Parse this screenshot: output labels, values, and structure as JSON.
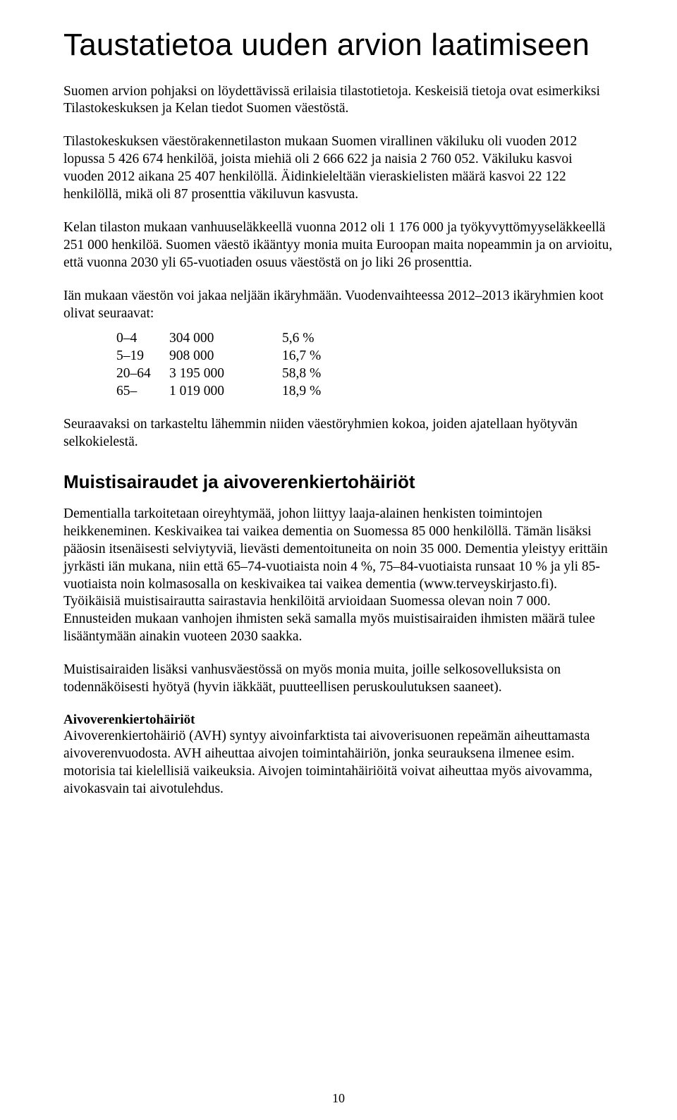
{
  "title": "Taustatietoa uuden arvion laatimiseen",
  "para1": "Suomen arvion pohjaksi on löydettävissä erilaisia tilastotietoja. Keskeisiä tietoja ovat esimerkiksi Tilastokeskuksen ja Kelan tiedot Suomen väestöstä.",
  "para2": "Tilastokeskuksen väestörakennetilaston mukaan Suomen virallinen väkiluku oli vuoden 2012 lopussa 5 426 674 henkilöä, joista miehiä oli 2 666 622 ja naisia 2 760 052. Väkiluku kasvoi vuoden 2012 aikana 25 407 henkilöllä. Äidinkieleltään vieraskielisten määrä kasvoi 22 122 henkilöllä, mikä oli 87 prosenttia väkiluvun kasvusta.",
  "para3": "Kelan tilaston mukaan vanhuuseläkkeellä vuonna 2012 oli 1 176 000 ja työkyvyttömyyseläkkeellä 251 000 henkilöä. Suomen väestö ikääntyy monia muita Euroopan maita nopeammin ja on arvioitu, että vuonna 2030 yli 65-vuotiaden osuus väestöstä on jo liki 26 prosenttia.",
  "para4_intro": "Iän mukaan väestön voi jakaa neljään ikäryhmään. Vuodenvaihteessa 2012–2013 ikäryhmien koot olivat seuraavat:",
  "age_groups": [
    {
      "range": "0–4",
      "count": "304 000",
      "pct": "5,6 %"
    },
    {
      "range": "5–19",
      "count": "908 000",
      "pct": "16,7 %"
    },
    {
      "range": "20–64",
      "count": "3 195 000",
      "pct": "58,8 %"
    },
    {
      "range": "65–",
      "count": "1 019 000",
      "pct": "18,9 %"
    }
  ],
  "para5": "Seuraavaksi on tarkasteltu lähemmin niiden väestöryhmien kokoa, joiden ajatellaan hyötyvän selkokielestä.",
  "section1_heading": "Muistisairaudet ja aivoverenkiertohäiriöt",
  "section1_para1": "Dementialla tarkoitetaan oireyhtymää, johon liittyy laaja-alainen henkisten toimintojen heikkeneminen. Keskivaikea tai vaikea dementia on Suomessa 85 000 henkilöllä. Tämän lisäksi pääosin itsenäisesti selviytyviä, lievästi dementoituneita on noin 35 000. Dementia yleistyy erittäin jyrkästi iän mukana, niin että 65–74-vuotiaista noin 4 %, 75–84-vuotiaista runsaat 10 % ja yli 85-vuotiaista noin kolmasosalla on keskivaikea tai vaikea dementia (www.terveyskirjasto.fi). Työikäisiä muistisairautta sairastavia henkilöitä arvioidaan Suomessa olevan noin 7 000. Ennusteiden mukaan vanhojen ihmisten sekä samalla myös muistisairaiden ihmisten määrä tulee lisääntymään ainakin vuoteen 2030 saakka.",
  "section1_para2": "Muistisairaiden lisäksi vanhusväestössä on myös monia muita, joille selkosovelluksista on todennäköisesti hyötyä (hyvin iäkkäät, puutteellisen peruskoulutuksen saaneet).",
  "sub1_heading": "Aivoverenkiertohäiriöt",
  "sub1_para": "Aivoverenkiertohäiriö (AVH) syntyy aivoinfarktista tai aivoverisuonen repeämän aiheuttamasta aivoverenvuodosta. AVH aiheuttaa aivojen toimintahäiriön, jonka seurauksena ilmenee esim. motorisia tai kielellisiä vaikeuksia. Aivojen toimintahäiriöitä voivat aiheuttaa myös aivovamma, aivokasvain tai aivotulehdus.",
  "page_number": "10"
}
